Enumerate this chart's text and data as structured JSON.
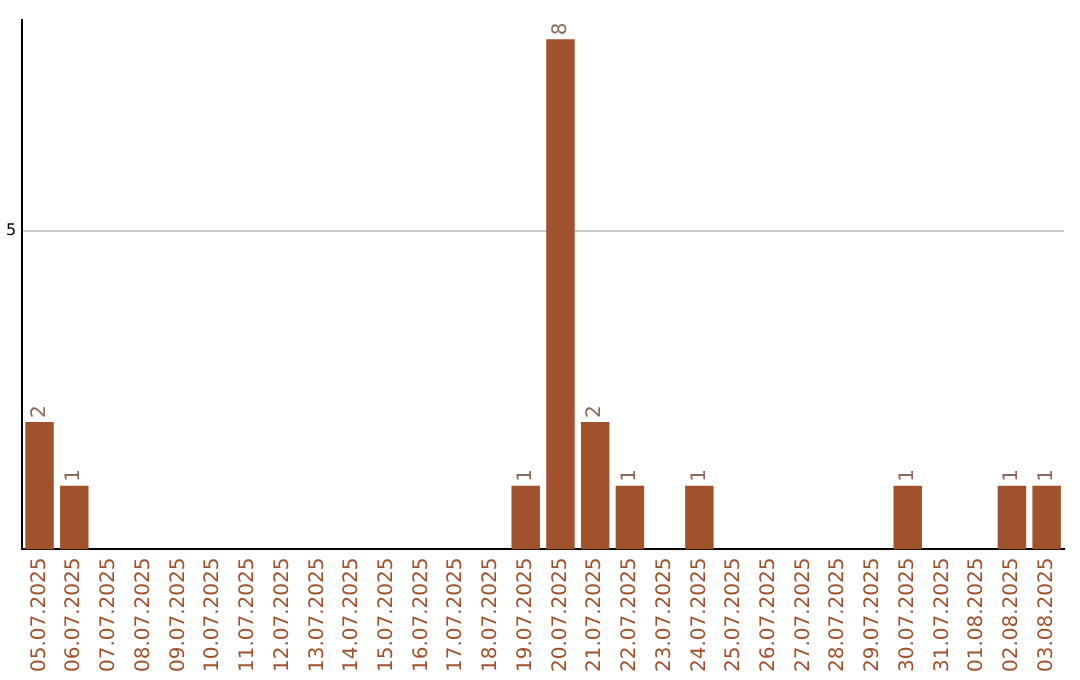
{
  "chart_data": {
    "type": "bar",
    "categories": [
      "05.07.2025",
      "06.07.2025",
      "07.07.2025",
      "08.07.2025",
      "09.07.2025",
      "10.07.2025",
      "11.07.2025",
      "12.07.2025",
      "13.07.2025",
      "14.07.2025",
      "15.07.2025",
      "16.07.2025",
      "17.07.2025",
      "18.07.2025",
      "19.07.2025",
      "20.07.2025",
      "21.07.2025",
      "22.07.2025",
      "23.07.2025",
      "24.07.2025",
      "25.07.2025",
      "26.07.2025",
      "27.07.2025",
      "28.07.2025",
      "29.07.2025",
      "30.07.2025",
      "31.07.2025",
      "01.08.2025",
      "02.08.2025",
      "03.08.2025"
    ],
    "values": [
      2,
      1,
      0,
      0,
      0,
      0,
      0,
      0,
      0,
      0,
      0,
      0,
      0,
      0,
      1,
      8,
      2,
      1,
      0,
      1,
      0,
      0,
      0,
      0,
      0,
      1,
      0,
      0,
      1,
      1
    ],
    "value_labels": [
      "2",
      "1",
      null,
      null,
      null,
      null,
      null,
      null,
      null,
      null,
      null,
      null,
      null,
      null,
      "1",
      "8",
      "2",
      "1",
      null,
      "1",
      null,
      null,
      null,
      null,
      null,
      "1",
      null,
      null,
      "1",
      "1"
    ],
    "color": "#a0522d",
    "ylim": [
      0,
      8.3
    ],
    "yticks": [
      5
    ],
    "grid": "y",
    "legend": false
  }
}
